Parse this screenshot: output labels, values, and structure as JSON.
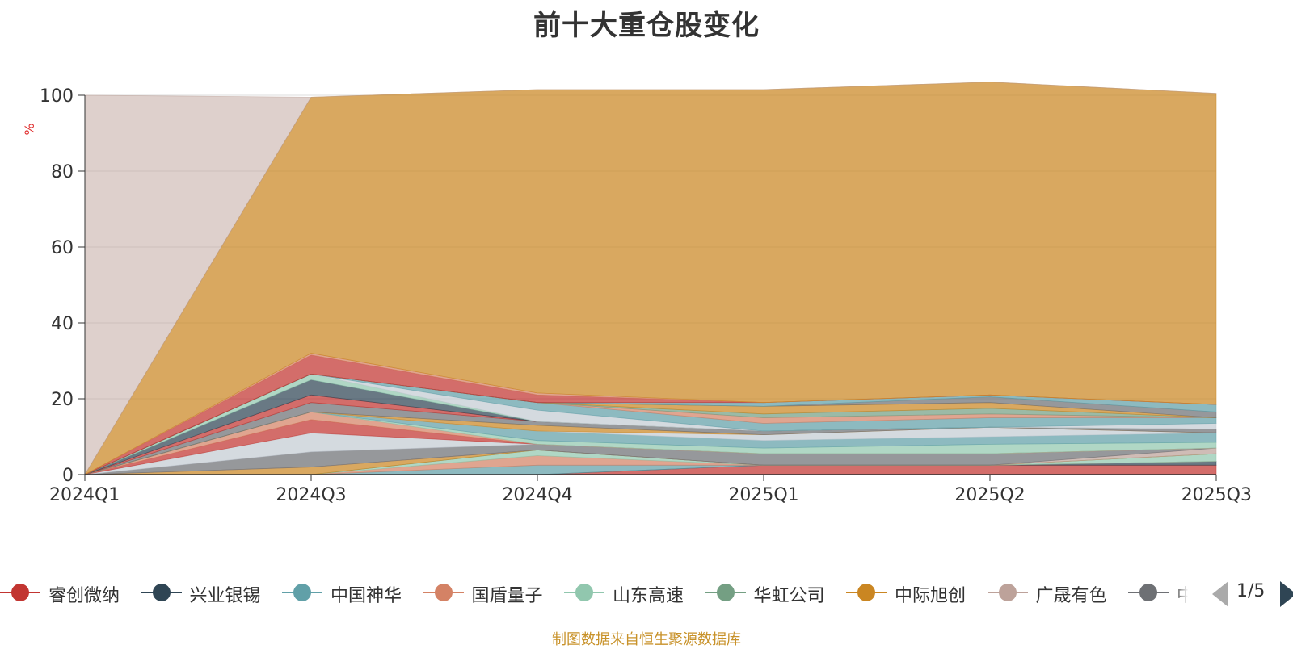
{
  "chart_data": {
    "type": "area",
    "title": "前十大重仓股变化",
    "ylabel": "%",
    "ylim": [
      0,
      100
    ],
    "yticks": [
      0,
      20,
      40,
      60,
      80,
      100
    ],
    "categories": [
      "2024Q1",
      "2024Q3",
      "2024Q4",
      "2025Q1",
      "2025Q2",
      "2025Q3"
    ],
    "grid": true,
    "series": [
      {
        "name": "睿创微纳",
        "color": "#c23531",
        "values": [
          0,
          0,
          0,
          2.5,
          2.5,
          2.5
        ]
      },
      {
        "name": "兴业银锡",
        "color": "#2f4554",
        "values": [
          0,
          0,
          0,
          0,
          0,
          1
        ]
      },
      {
        "name": "中国神华",
        "color": "#61a0a8",
        "values": [
          0,
          0,
          2.5,
          0,
          0,
          0
        ]
      },
      {
        "name": "国盾量子",
        "color": "#d48265",
        "values": [
          0,
          0,
          2.5,
          0,
          0,
          0
        ]
      },
      {
        "name": "山东高速",
        "color": "#91c7ae",
        "values": [
          0,
          0,
          1.5,
          0,
          0,
          2
        ]
      },
      {
        "name": "华虹公司",
        "color": "#749f83",
        "values": [
          0,
          0,
          0,
          0,
          0,
          0
        ]
      },
      {
        "name": "中际旭创",
        "color": "#ca8622",
        "values": [
          0,
          2,
          0,
          0,
          0,
          0
        ]
      },
      {
        "name": "广晟有色",
        "color": "#bda29a",
        "values": [
          0,
          0,
          0,
          0,
          0,
          1.5
        ]
      },
      {
        "name": "",
        "color": "#6e7074",
        "values": [
          0,
          4,
          1.5,
          3,
          3,
          0
        ]
      },
      {
        "name": "",
        "color": "#c4ccd3",
        "values": [
          0,
          5,
          0,
          0,
          0,
          0
        ]
      },
      {
        "name": "",
        "color": "#c23531",
        "values": [
          0,
          3.5,
          0,
          0,
          0,
          0
        ]
      },
      {
        "name": "",
        "color": "#d48265",
        "values": [
          0,
          2,
          0,
          0,
          0,
          0
        ]
      },
      {
        "name": "",
        "color": "#91c7ae",
        "values": [
          0,
          0,
          1,
          1.5,
          2.5,
          1.5
        ]
      },
      {
        "name": "",
        "color": "#61a0a8",
        "values": [
          0,
          0,
          2.5,
          2,
          2,
          2.5
        ]
      },
      {
        "name": "",
        "color": "#c4ccd3",
        "values": [
          0,
          0,
          0,
          1.5,
          2.5,
          0
        ]
      },
      {
        "name": "",
        "color": "#ca8622",
        "values": [
          0,
          0,
          1.5,
          0,
          0,
          0
        ]
      },
      {
        "name": "",
        "color": "#6e7074",
        "values": [
          0,
          2.5,
          1,
          1,
          0,
          1
        ]
      },
      {
        "name": "",
        "color": "#c23531",
        "values": [
          0,
          2,
          0,
          0,
          0,
          0
        ]
      },
      {
        "name": "",
        "color": "#2f4554",
        "values": [
          0,
          4,
          0,
          0,
          0,
          0
        ]
      },
      {
        "name": "",
        "color": "#91c7ae",
        "values": [
          0,
          1.5,
          0,
          0,
          0,
          0
        ]
      },
      {
        "name": "",
        "color": "#c4ccd3",
        "values": [
          0,
          0,
          3,
          0,
          0,
          1.5
        ]
      },
      {
        "name": "",
        "color": "#61a0a8",
        "values": [
          0,
          0,
          2,
          2,
          2.5,
          1.5
        ]
      },
      {
        "name": "",
        "color": "#d48265",
        "values": [
          0,
          0,
          0,
          1.5,
          1,
          0
        ]
      },
      {
        "name": "",
        "color": "#749f83",
        "values": [
          0,
          0,
          0,
          1,
          1.5,
          0
        ]
      },
      {
        "name": "",
        "color": "#ca8622",
        "values": [
          0,
          0,
          0,
          2,
          1.5,
          0
        ]
      },
      {
        "name": "",
        "color": "#6e7074",
        "values": [
          0,
          0,
          0,
          0,
          1.5,
          1.5
        ]
      },
      {
        "name": "",
        "color": "#61a0a8",
        "values": [
          0,
          0,
          0,
          1,
          0.5,
          2
        ]
      },
      {
        "name": "",
        "color": "#c23531",
        "values": [
          0,
          5,
          2,
          0,
          0,
          0
        ]
      },
      {
        "name": "",
        "color": "#d48265",
        "values": [
          0,
          0.5,
          0.5,
          0,
          0,
          0
        ]
      },
      {
        "name": "",
        "color": "#ca8622",
        "values": [
          0,
          67.5,
          80,
          82.5,
          82.5,
          82
        ]
      },
      {
        "name": "",
        "color": "#bda29a",
        "values": [
          100,
          0,
          0,
          0,
          0,
          0
        ]
      }
    ]
  },
  "legend": {
    "items": [
      {
        "label": "睿创微纳",
        "color": "#c23531"
      },
      {
        "label": "兴业银锡",
        "color": "#2f4554"
      },
      {
        "label": "中国神华",
        "color": "#61a0a8"
      },
      {
        "label": "国盾量子",
        "color": "#d48265"
      },
      {
        "label": "山东高速",
        "color": "#91c7ae"
      },
      {
        "label": "华虹公司",
        "color": "#749f83"
      },
      {
        "label": "中际旭创",
        "color": "#ca8622"
      },
      {
        "label": "广晟有色",
        "color": "#bda29a"
      },
      {
        "label": "中",
        "color": "#6e7074"
      }
    ],
    "page": "1/5",
    "prev_icon": "triangle-left-icon",
    "next_icon": "triangle-right-icon"
  },
  "source_note": "制图数据来自恒生聚源数据库"
}
